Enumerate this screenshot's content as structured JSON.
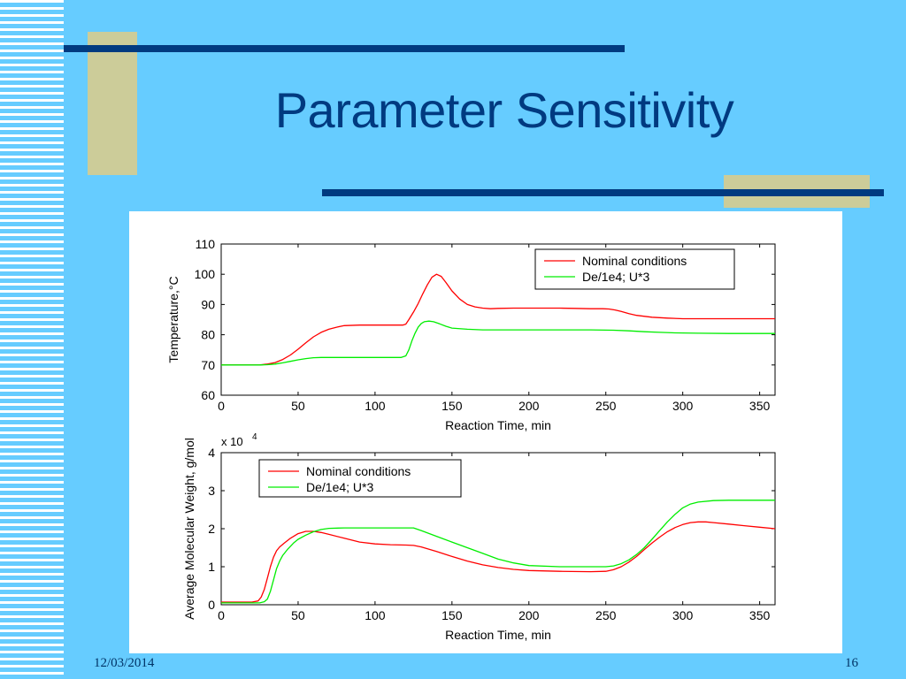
{
  "slide": {
    "title": "Parameter Sensitivity",
    "date": "12/03/2014",
    "page_number": "16"
  },
  "colors": {
    "background": "#66CCFF",
    "title": "#003A80",
    "bar": "#003A80",
    "accent_block": "#CCCC99",
    "nominal": "#FF0000",
    "modified": "#00EE00"
  },
  "chart_data": [
    {
      "type": "line",
      "xlabel": "Reaction Time, min",
      "ylabel": "Temperature,°C",
      "xlim": [
        0,
        360
      ],
      "ylim": [
        60,
        110
      ],
      "xticks": [
        0,
        50,
        100,
        150,
        200,
        250,
        300,
        350
      ],
      "yticks": [
        60,
        70,
        80,
        90,
        100,
        110
      ],
      "legend_position": "top-right",
      "series": [
        {
          "name": "Nominal conditions",
          "color": "#FF0000",
          "x": [
            0,
            25,
            30,
            35,
            40,
            45,
            50,
            55,
            60,
            65,
            70,
            75,
            80,
            90,
            100,
            110,
            118,
            120,
            122,
            125,
            128,
            131,
            134,
            137,
            140,
            143,
            146,
            150,
            155,
            160,
            165,
            170,
            175,
            180,
            190,
            200,
            210,
            220,
            230,
            240,
            248,
            252,
            256,
            260,
            265,
            270,
            280,
            290,
            300,
            320,
            340,
            360
          ],
          "y": [
            70,
            70,
            70.3,
            70.8,
            71.8,
            73.3,
            75.2,
            77.3,
            79.3,
            80.8,
            81.8,
            82.5,
            83,
            83.2,
            83.2,
            83.2,
            83.2,
            83.5,
            85,
            87.5,
            90.3,
            93.5,
            96.5,
            99,
            100,
            99.3,
            97.3,
            94.5,
            91.8,
            90,
            89.2,
            88.8,
            88.6,
            88.7,
            88.8,
            88.8,
            88.8,
            88.8,
            88.7,
            88.6,
            88.6,
            88.5,
            88.2,
            87.7,
            87,
            86.4,
            85.8,
            85.5,
            85.3,
            85.3,
            85.3,
            85.3
          ]
        },
        {
          "name": "De/1e4; U*3",
          "color": "#00EE00",
          "x": [
            0,
            25,
            30,
            35,
            40,
            45,
            50,
            55,
            60,
            65,
            70,
            80,
            90,
            100,
            110,
            117,
            120,
            122,
            124,
            126,
            128,
            130,
            132,
            135,
            138,
            142,
            146,
            150,
            160,
            170,
            180,
            200,
            220,
            240,
            255,
            265,
            275,
            285,
            295,
            310,
            330,
            360
          ],
          "y": [
            70,
            70,
            70.1,
            70.3,
            70.7,
            71.2,
            71.7,
            72.1,
            72.4,
            72.5,
            72.5,
            72.5,
            72.5,
            72.5,
            72.5,
            72.5,
            73,
            75,
            78,
            80.5,
            82.5,
            83.7,
            84.3,
            84.5,
            84.3,
            83.6,
            82.8,
            82.2,
            81.8,
            81.6,
            81.6,
            81.6,
            81.6,
            81.6,
            81.5,
            81.3,
            81,
            80.8,
            80.6,
            80.5,
            80.4,
            80.4
          ]
        }
      ]
    },
    {
      "type": "line",
      "xlabel": "Reaction Time, min",
      "ylabel": "Average Molecular Weight, g/mol",
      "y_multiplier": "x 10",
      "y_multiplier_exponent": "4",
      "xlim": [
        0,
        360
      ],
      "ylim": [
        0,
        4
      ],
      "xticks": [
        0,
        50,
        100,
        150,
        200,
        250,
        300,
        350
      ],
      "yticks": [
        0,
        1,
        2,
        3,
        4
      ],
      "legend_position": "top-left",
      "series": [
        {
          "name": "Nominal conditions",
          "color": "#FF0000",
          "x": [
            0,
            20,
            24,
            26,
            28,
            30,
            32,
            34,
            36,
            38,
            41,
            45,
            50,
            55,
            60,
            65,
            70,
            80,
            90,
            100,
            110,
            120,
            125,
            130,
            140,
            150,
            160,
            170,
            180,
            190,
            200,
            220,
            240,
            250,
            255,
            260,
            265,
            270,
            275,
            280,
            285,
            290,
            295,
            300,
            305,
            310,
            315,
            320,
            330,
            340,
            350,
            360
          ],
          "y": [
            0.07,
            0.07,
            0.1,
            0.2,
            0.4,
            0.7,
            1.0,
            1.25,
            1.42,
            1.52,
            1.62,
            1.75,
            1.87,
            1.93,
            1.93,
            1.9,
            1.85,
            1.75,
            1.65,
            1.6,
            1.58,
            1.57,
            1.56,
            1.52,
            1.4,
            1.27,
            1.15,
            1.05,
            0.98,
            0.93,
            0.9,
            0.88,
            0.87,
            0.88,
            0.92,
            1.0,
            1.12,
            1.27,
            1.45,
            1.62,
            1.78,
            1.92,
            2.03,
            2.11,
            2.16,
            2.18,
            2.18,
            2.16,
            2.12,
            2.08,
            2.04,
            2.0
          ]
        },
        {
          "name": "De/1e4; U*3",
          "color": "#00EE00",
          "x": [
            0,
            25,
            28,
            30,
            32,
            34,
            36,
            38,
            40,
            43,
            47,
            50,
            55,
            60,
            65,
            70,
            80,
            100,
            120,
            125,
            130,
            140,
            150,
            160,
            170,
            180,
            190,
            200,
            220,
            240,
            250,
            255,
            260,
            265,
            270,
            275,
            280,
            285,
            290,
            295,
            300,
            305,
            310,
            320,
            330,
            340,
            360
          ],
          "y": [
            0.05,
            0.05,
            0.08,
            0.15,
            0.35,
            0.65,
            0.95,
            1.15,
            1.3,
            1.45,
            1.62,
            1.72,
            1.83,
            1.92,
            1.98,
            2.01,
            2.02,
            2.02,
            2.02,
            2.02,
            1.95,
            1.8,
            1.65,
            1.5,
            1.35,
            1.2,
            1.1,
            1.03,
            1.0,
            1.0,
            1.0,
            1.02,
            1.08,
            1.18,
            1.32,
            1.5,
            1.72,
            1.95,
            2.18,
            2.38,
            2.55,
            2.65,
            2.7,
            2.74,
            2.75,
            2.75,
            2.75
          ]
        }
      ]
    }
  ]
}
